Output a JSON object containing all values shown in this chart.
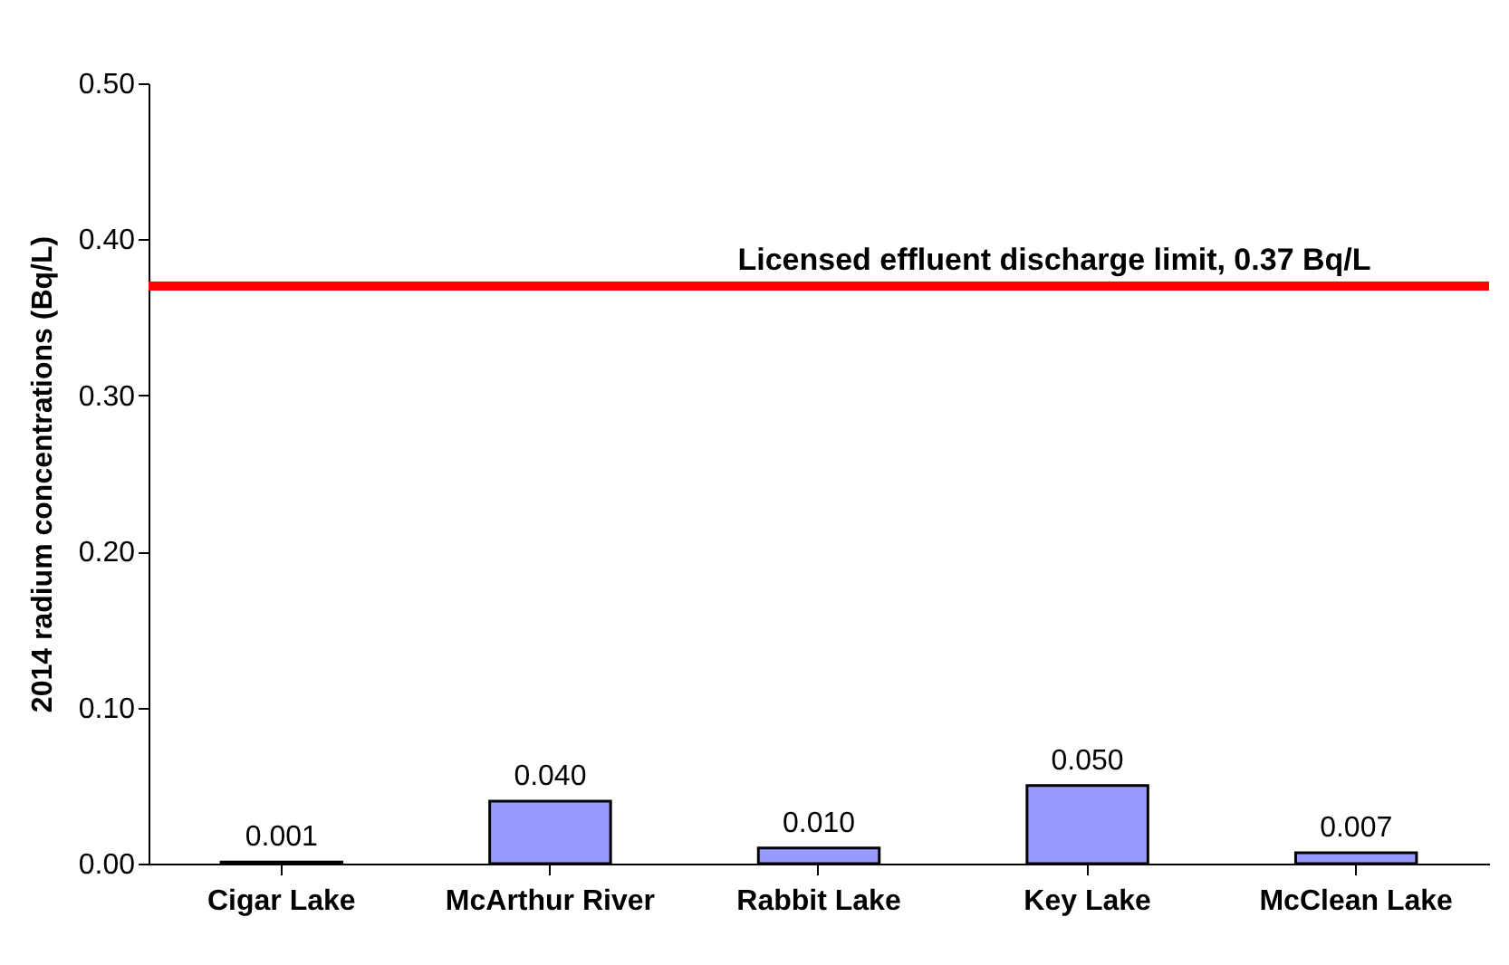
{
  "chart_data": {
    "type": "bar",
    "ylabel": "2014 radium concentrations (Bq/L)",
    "categories": [
      "Cigar Lake",
      "McArthur River",
      "Rabbit Lake",
      "Key Lake",
      "McClean Lake"
    ],
    "values": [
      0.001,
      0.04,
      0.01,
      0.05,
      0.007
    ],
    "value_labels": [
      "0.001",
      "0.040",
      "0.010",
      "0.050",
      "0.007"
    ],
    "color": "#9999ff",
    "ylim": [
      0,
      0.5
    ],
    "yticks": [
      {
        "value": 0,
        "label": "0.00"
      },
      {
        "value": 0.1,
        "label": "0.10"
      },
      {
        "value": 0.2,
        "label": "0.20"
      },
      {
        "value": 0.3,
        "label": "0.30"
      },
      {
        "value": 0.4,
        "label": "0.40"
      },
      {
        "value": 0.5,
        "label": "0.50"
      }
    ],
    "ref_lines": [
      {
        "axis": "y",
        "value": 0.37,
        "label": "Licensed effluent discharge limit,  0.37 Bq/L",
        "color": "#ff0000"
      }
    ],
    "grid": false
  }
}
